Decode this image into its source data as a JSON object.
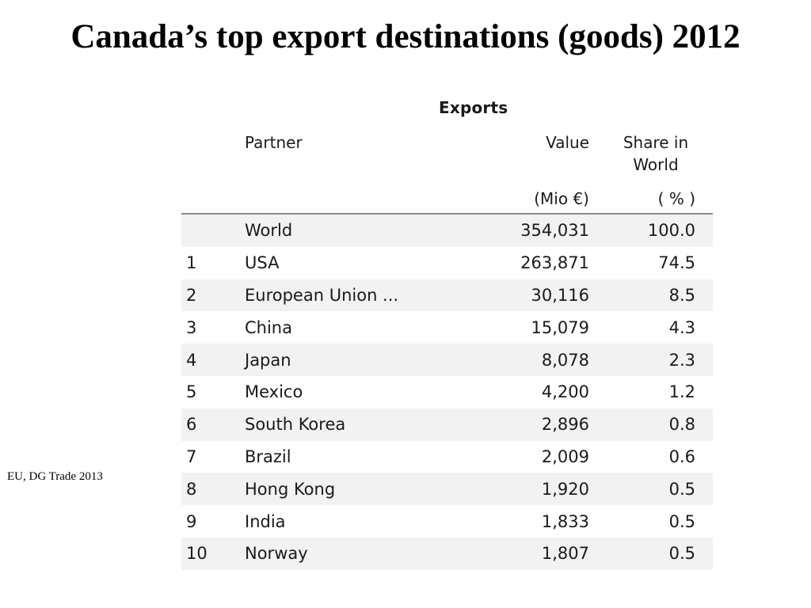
{
  "title": "Canada’s top export destinations (goods) 2012",
  "source": "EU, DG Trade 2013",
  "table": {
    "group_header": "Exports",
    "headers": {
      "partner": "Partner",
      "value": "Value",
      "share_line1": "Share in",
      "share_line2": "World",
      "value_unit": "(Mio €)",
      "share_unit": "( % )"
    },
    "rows": [
      {
        "rank": "",
        "partner": "World",
        "value": "354,031",
        "share": "100.0"
      },
      {
        "rank": "1",
        "partner": "USA",
        "value": "263,871",
        "share": "74.5"
      },
      {
        "rank": "2",
        "partner": "European Union ...",
        "value": "30,116",
        "share": "8.5"
      },
      {
        "rank": "3",
        "partner": "China",
        "value": "15,079",
        "share": "4.3"
      },
      {
        "rank": "4",
        "partner": "Japan",
        "value": "8,078",
        "share": "2.3"
      },
      {
        "rank": "5",
        "partner": "Mexico",
        "value": "4,200",
        "share": "1.2"
      },
      {
        "rank": "6",
        "partner": "South Korea",
        "value": "2,896",
        "share": "0.8"
      },
      {
        "rank": "7",
        "partner": "Brazil",
        "value": "2,009",
        "share": "0.6"
      },
      {
        "rank": "8",
        "partner": "Hong Kong",
        "value": "1,920",
        "share": "0.5"
      },
      {
        "rank": "9",
        "partner": "India",
        "value": "1,833",
        "share": "0.5"
      },
      {
        "rank": "10",
        "partner": "Norway",
        "value": "1,807",
        "share": "0.5"
      }
    ]
  }
}
